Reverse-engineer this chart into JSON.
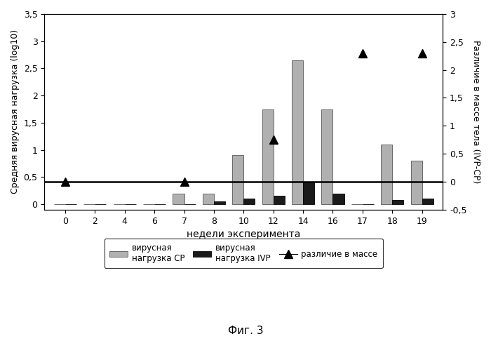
{
  "weeks": [
    0,
    2,
    4,
    6,
    7,
    8,
    10,
    12,
    14,
    16,
    17,
    18,
    19
  ],
  "cp_bars": [
    0.0,
    0.0,
    0.0,
    0.0,
    0.2,
    0.2,
    0.9,
    1.75,
    2.65,
    1.75,
    0.0,
    1.1,
    0.8
  ],
  "ivp_bars": [
    0.0,
    0.0,
    0.0,
    0.0,
    0.0,
    0.05,
    0.1,
    0.15,
    0.4,
    0.2,
    0.0,
    0.08,
    0.1
  ],
  "diff_points_x_idx": [
    0,
    4,
    7,
    10,
    12
  ],
  "diff_points_right": [
    0.0,
    0.0,
    0.75,
    2.3,
    2.3
  ],
  "ylabel_left": "Средняя вирусная нагрузка (log10)",
  "ylabel_right": "Различие в массе тела (IVP-CP)",
  "xlabel": "недели эксперимента",
  "ylim_left": [
    -0.1,
    3.5
  ],
  "ylim_right": [
    -0.5,
    3.0
  ],
  "legend_cp": "вирусная\nнагрузка CP",
  "legend_ivp": "вирусная\nнагрузка IVP",
  "legend_diff": "различие в массе",
  "caption": "Фиг. 3",
  "bar_width": 0.38,
  "cp_color": "#b0b0b0",
  "ivp_color": "#1a1a1a",
  "line_color": "#000000",
  "marker_color": "#000000",
  "background_color": "#ffffff",
  "xtick_labels": [
    "0",
    "2",
    "4",
    "6",
    "7",
    "8",
    "10",
    "12",
    "14",
    "16",
    "17",
    "18",
    "19"
  ],
  "left_yticks": [
    0.0,
    0.5,
    1.0,
    1.5,
    2.0,
    2.5,
    3.0,
    3.5
  ],
  "left_ytick_labels": [
    "0",
    "0,5",
    "1",
    "1,5",
    "2",
    "2,5",
    "3",
    "3,5"
  ],
  "right_yticks": [
    -0.5,
    0.0,
    0.5,
    1.0,
    1.5,
    2.0,
    2.5,
    3.0
  ],
  "right_ytick_labels": [
    "-0,5",
    "0",
    "0,5",
    "1",
    "1,5",
    "2",
    "2,5",
    "3"
  ]
}
